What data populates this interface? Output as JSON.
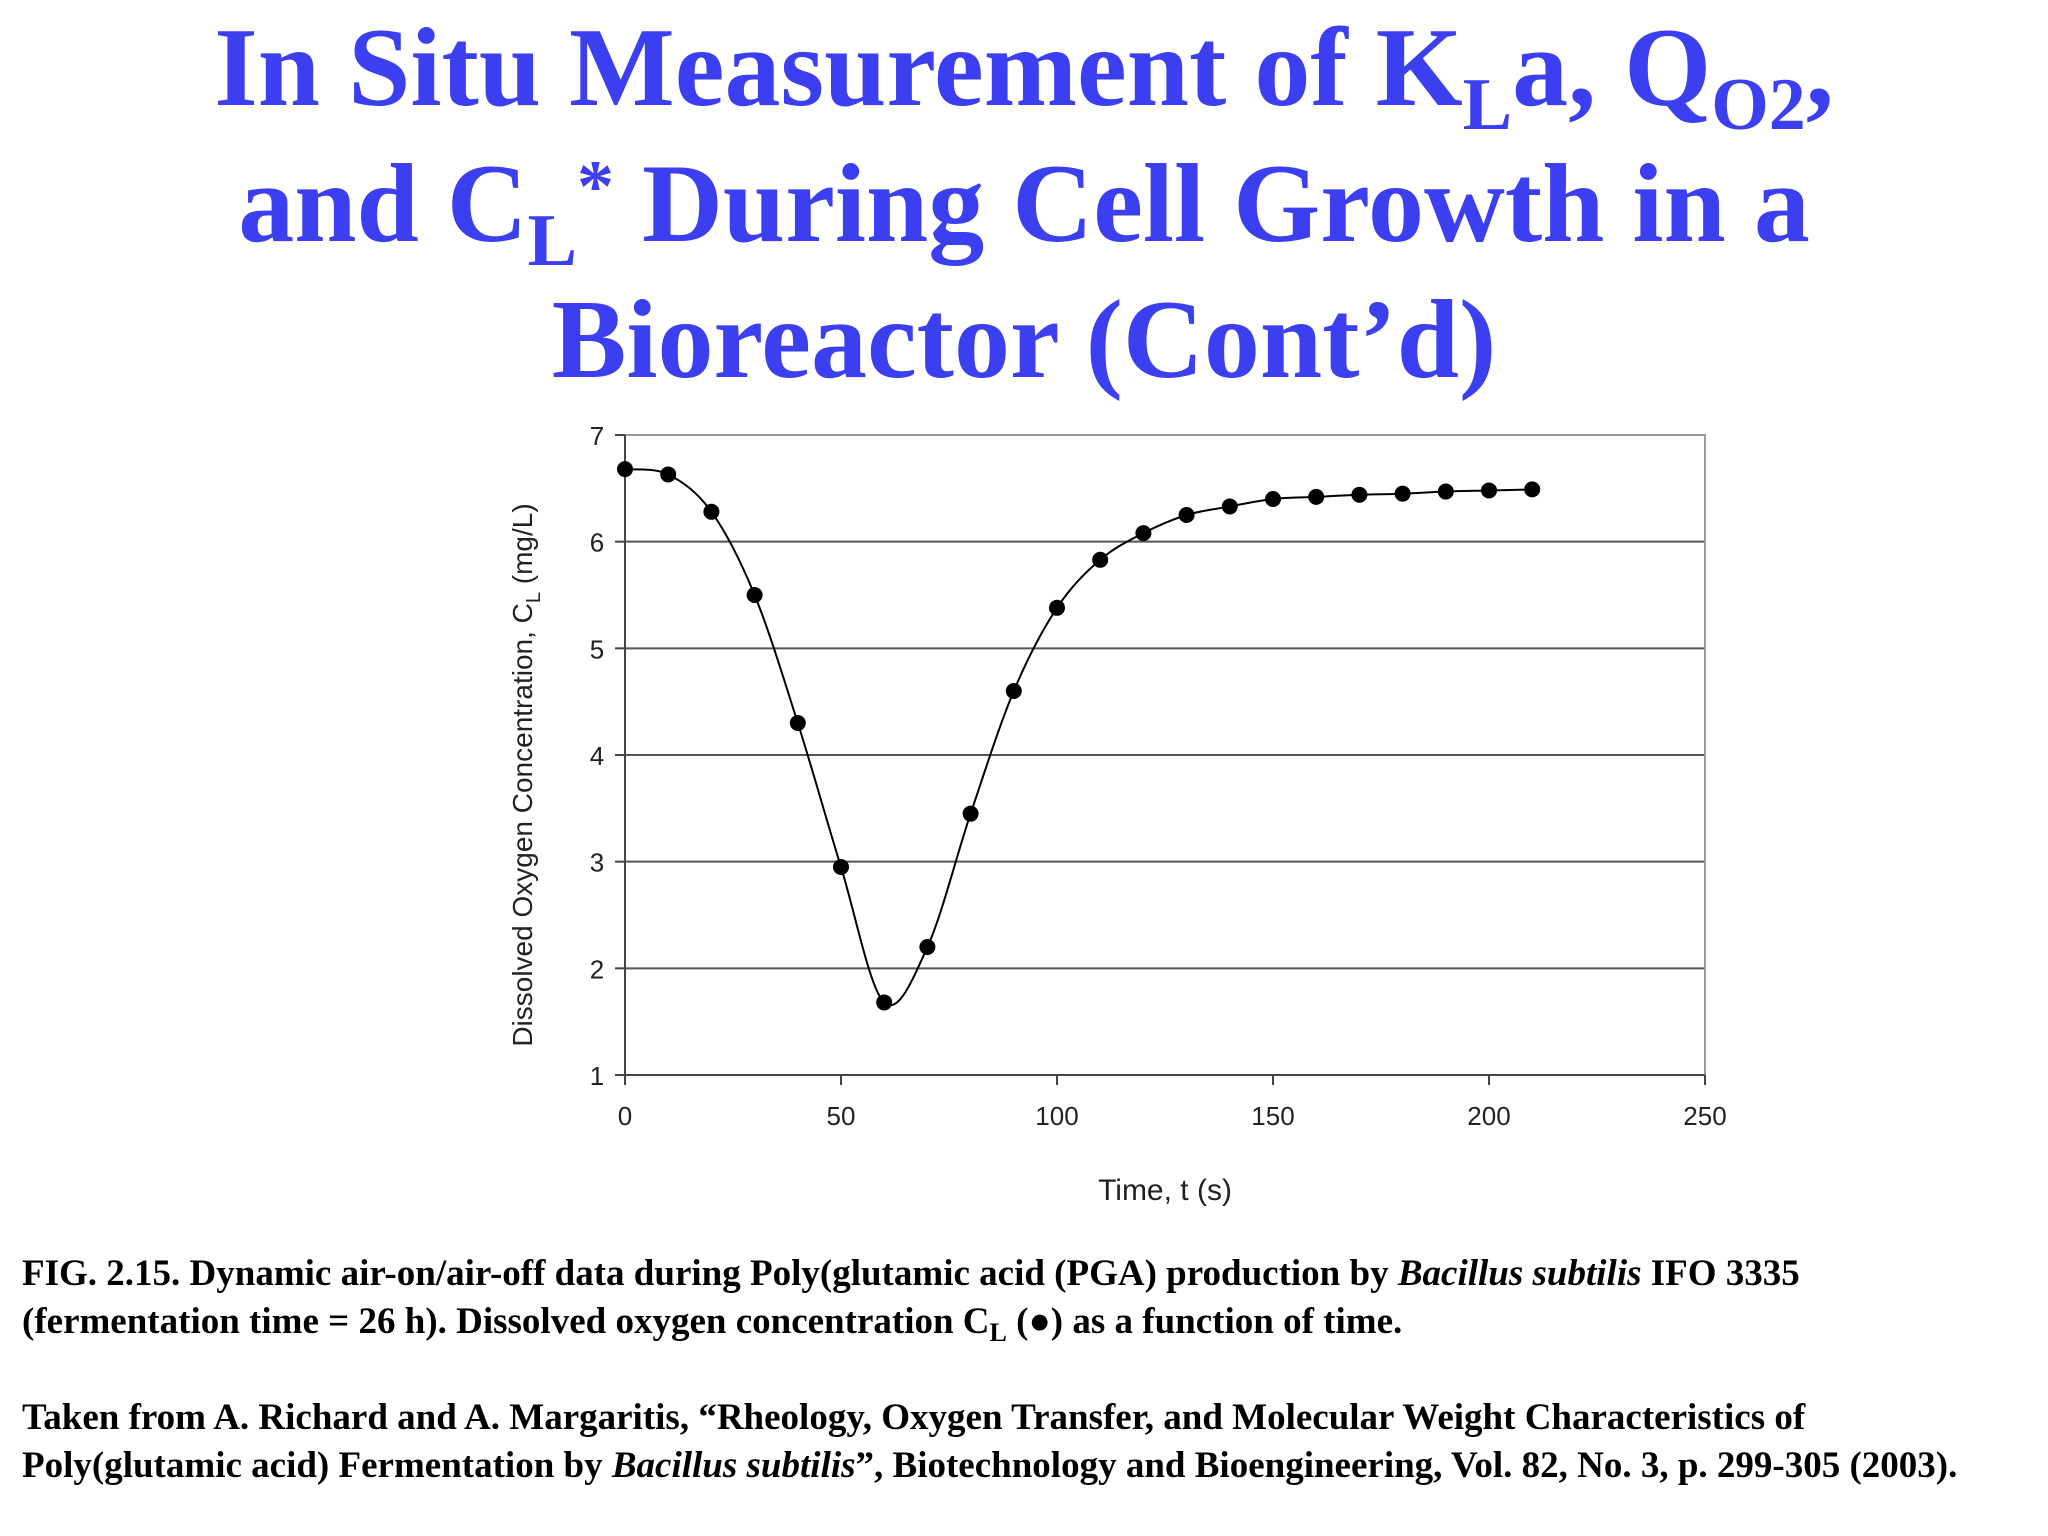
{
  "title": {
    "l1a": "In Situ Measurement of K",
    "l1sub1": "L",
    "l1b": "a, Q",
    "l1sub2": "O2",
    "l1c": ",",
    "l2a": "and C",
    "l2sub": "L",
    "l2sup": "*",
    "l2b": " During Cell Growth in a",
    "l3": "Bioreactor (Cont’d)"
  },
  "caption": {
    "fig_a": "FIG. 2.15. Dynamic air-on/air-off data during Poly(glutamic acid (PGA) production by ",
    "fig_i": "Bacillus subtilis",
    "fig_b": " IFO 3335 (fermentation time = 26 h). Dissolved oxygen concentration C",
    "fig_sub": "L",
    "fig_c": " (●) as a function of time.",
    "cite_a": "Taken from A. Richard and A. Margaritis, “Rheology, Oxygen Transfer, and Molecular Weight Characteristics of Poly(glutamic acid) Fermentation by ",
    "cite_i": "Bacillus subtilis",
    "cite_b": "”, Biotechnology and Bioengineering, Vol. 82, No. 3, p. 299-305 (2003)."
  },
  "chart_data": {
    "type": "scatter",
    "xlabel": "Time, t (s)",
    "ylabel": "Dissolved Oxygen Concentration, C",
    "ylabel_sub": "L",
    "ylabel_unit": " (mg/L)",
    "xlim": [
      0,
      250
    ],
    "ylim": [
      1,
      7
    ],
    "xticks": [
      "0",
      "50",
      "100",
      "150",
      "200",
      "250"
    ],
    "yticks": [
      "1",
      "2",
      "3",
      "4",
      "5",
      "6",
      "7"
    ],
    "grid": "horizontal",
    "series": [
      {
        "marker": "filled-circle",
        "color": "#000000",
        "fit_line": true,
        "x": [
          0,
          10,
          20,
          30,
          40,
          50,
          60,
          70,
          80,
          90,
          100,
          110,
          120,
          130,
          140,
          150,
          160,
          170,
          180,
          190,
          200,
          210
        ],
        "y": [
          6.68,
          6.63,
          6.28,
          5.5,
          4.3,
          2.95,
          1.68,
          2.2,
          3.45,
          4.6,
          5.38,
          5.83,
          6.08,
          6.25,
          6.33,
          6.4,
          6.42,
          6.44,
          6.45,
          6.47,
          6.48,
          6.49
        ]
      }
    ]
  }
}
